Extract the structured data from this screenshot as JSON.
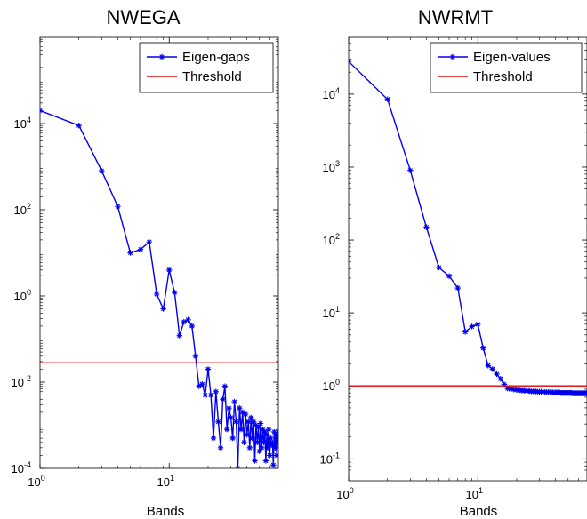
{
  "chart_data": [
    {
      "type": "line",
      "title": "NWEGA",
      "xlabel": "Bands",
      "ylabel": "",
      "x_scale": "log",
      "y_scale": "log",
      "xlim": [
        1,
        70
      ],
      "ylim": [
        0.0001,
        1000000
      ],
      "x_ticks": [
        {
          "v": 1,
          "base": "10",
          "exp": "0"
        },
        {
          "v": 10,
          "base": "10",
          "exp": "1"
        }
      ],
      "y_ticks": [
        {
          "v": 0.0001,
          "base": "10",
          "exp": "-4"
        },
        {
          "v": 0.01,
          "base": "10",
          "exp": "-2"
        },
        {
          "v": 1,
          "base": "10",
          "exp": "0"
        },
        {
          "v": 100,
          "base": "10",
          "exp": "2"
        },
        {
          "v": 10000,
          "base": "10",
          "exp": "4"
        }
      ],
      "legend_position": "top-right",
      "series": [
        {
          "name": "Eigen-gaps",
          "color": "#0000ee",
          "marker": "asterisk",
          "x": [
            1,
            2,
            3,
            4,
            5,
            6,
            7,
            8,
            9,
            10,
            11,
            12,
            13,
            14,
            15,
            16,
            17,
            18,
            19,
            20,
            21,
            22,
            23,
            24,
            25,
            26,
            27,
            28,
            29,
            30,
            31,
            32,
            33,
            34,
            35,
            36,
            37,
            38,
            39,
            40,
            41,
            42,
            43,
            44,
            45,
            46,
            47,
            48,
            49,
            50,
            51,
            52,
            53,
            54,
            55,
            56,
            57,
            58,
            59,
            60,
            61,
            62,
            63,
            64,
            65,
            66,
            67,
            68,
            69,
            70
          ],
          "y": [
            20000,
            9000,
            800,
            120,
            10,
            12,
            18,
            1.1,
            0.5,
            4,
            1.2,
            0.12,
            0.25,
            0.28,
            0.2,
            0.04,
            0.008,
            0.009,
            0.005,
            0.02,
            0.005,
            0.0005,
            0.006,
            0.0012,
            0.0003,
            0.004,
            0.008,
            0.0008,
            0.0025,
            0.0015,
            0.0005,
            0.0035,
            0.0012,
            0.0001,
            0.0025,
            0.0008,
            0.002,
            0.0004,
            0.0018,
            0.0006,
            0.0012,
            0.0003,
            0.0015,
            0.0005,
            0.0012,
            0.00015,
            0.001,
            0.0004,
            0.0009,
            0.00025,
            0.0011,
            0.0003,
            0.0008,
            0.0004,
            0.0007,
            0.00015,
            0.0006,
            0.0003,
            0.0008,
            0.0002,
            0.0005,
            0.00035,
            0.0004,
            0.00012,
            0.0007,
            0.0003,
            0.0006,
            0.0002,
            0.0005,
            0.0007
          ]
        },
        {
          "name": "Threshold",
          "color": "#dd0000",
          "marker": "none",
          "x": [
            1,
            70
          ],
          "y": [
            0.028,
            0.028
          ]
        }
      ]
    },
    {
      "type": "line",
      "title": "NWRMT",
      "xlabel": "Bands",
      "ylabel": "",
      "x_scale": "log",
      "y_scale": "log",
      "xlim": [
        1,
        70
      ],
      "ylim": [
        0.05,
        60000
      ],
      "x_ticks": [
        {
          "v": 1,
          "base": "10",
          "exp": "0"
        },
        {
          "v": 10,
          "base": "10",
          "exp": "1"
        }
      ],
      "y_ticks": [
        {
          "v": 0.1,
          "base": "10",
          "exp": "-1"
        },
        {
          "v": 1,
          "base": "10",
          "exp": "0"
        },
        {
          "v": 10,
          "base": "10",
          "exp": "1"
        },
        {
          "v": 100,
          "base": "10",
          "exp": "2"
        },
        {
          "v": 1000,
          "base": "10",
          "exp": "3"
        },
        {
          "v": 10000,
          "base": "10",
          "exp": "4"
        }
      ],
      "legend_position": "top-right",
      "series": [
        {
          "name": "Eigen-values",
          "color": "#0000ee",
          "marker": "asterisk",
          "x": [
            1,
            2,
            3,
            4,
            5,
            6,
            7,
            8,
            9,
            10,
            11,
            12,
            13,
            14,
            15,
            16,
            17,
            18,
            19,
            20,
            21,
            22,
            23,
            24,
            25,
            26,
            27,
            28,
            29,
            30,
            31,
            32,
            33,
            34,
            35,
            36,
            37,
            38,
            39,
            40,
            41,
            42,
            43,
            44,
            45,
            46,
            47,
            48,
            49,
            50,
            51,
            52,
            53,
            54,
            55,
            56,
            57,
            58,
            59,
            60,
            61,
            62,
            63,
            64,
            65,
            66,
            67,
            68,
            69,
            70
          ],
          "y": [
            28000,
            8500,
            900,
            150,
            42,
            32,
            22,
            5.5,
            6.5,
            7,
            3.3,
            1.9,
            1.7,
            1.45,
            1.25,
            1.05,
            0.92,
            0.9,
            0.89,
            0.88,
            0.87,
            0.86,
            0.86,
            0.85,
            0.85,
            0.84,
            0.84,
            0.84,
            0.83,
            0.83,
            0.83,
            0.83,
            0.82,
            0.82,
            0.82,
            0.82,
            0.82,
            0.81,
            0.81,
            0.81,
            0.81,
            0.81,
            0.81,
            0.8,
            0.8,
            0.8,
            0.8,
            0.8,
            0.8,
            0.8,
            0.8,
            0.8,
            0.8,
            0.79,
            0.79,
            0.79,
            0.79,
            0.79,
            0.79,
            0.79,
            0.79,
            0.79,
            0.79,
            0.79,
            0.79,
            0.79,
            0.79,
            0.79,
            0.79,
            0.79
          ]
        },
        {
          "name": "Threshold",
          "color": "#dd0000",
          "marker": "none",
          "x": [
            1,
            70
          ],
          "y": [
            1,
            1
          ]
        }
      ]
    }
  ]
}
